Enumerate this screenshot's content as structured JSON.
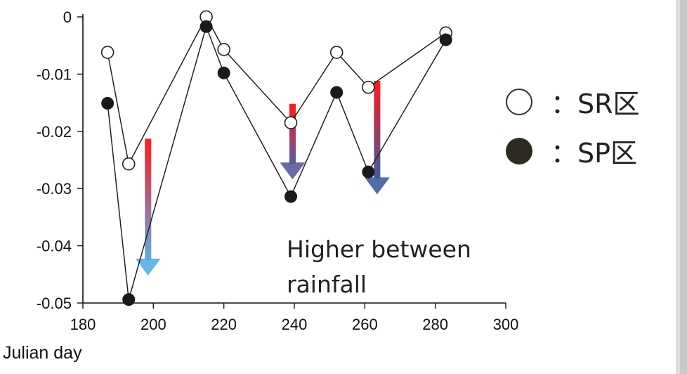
{
  "chart_data": {
    "type": "line",
    "title": "",
    "xlabel": "Julian day",
    "ylabel": "",
    "xlim": [
      180,
      300
    ],
    "ylim": [
      -0.05,
      0
    ],
    "x_ticks": [
      "180",
      "200",
      "220",
      "240",
      "260",
      "280",
      "300"
    ],
    "y_ticks": [
      "0",
      "-0.01",
      "-0.02",
      "-0.03",
      "-0.04",
      "-0.05"
    ],
    "series": [
      {
        "name": "SR区",
        "marker": "open-circle",
        "x": [
          187,
          193,
          215,
          220,
          239,
          252,
          261,
          283
        ],
        "y": [
          -0.0062,
          -0.0257,
          0.0,
          -0.0057,
          -0.0185,
          -0.0062,
          -0.0123,
          -0.0028
        ]
      },
      {
        "name": "SP区",
        "marker": "filled-circle",
        "x": [
          187,
          193,
          215,
          220,
          239,
          252,
          261,
          283
        ],
        "y": [
          -0.0151,
          -0.0494,
          -0.0017,
          -0.0098,
          -0.0314,
          -0.0132,
          -0.0271,
          -0.004
        ]
      }
    ],
    "arrows": [
      {
        "x": 198.5,
        "y_from": -0.0213,
        "y_to": -0.0452,
        "end_color": "#5aaee6"
      },
      {
        "x": 239.5,
        "y_from": -0.0152,
        "y_to": -0.0284,
        "end_color": "#5a5aa0"
      },
      {
        "x": 263.5,
        "y_from": -0.0112,
        "y_to": -0.031,
        "end_color": "#3f5da0"
      }
    ],
    "grid": false,
    "legend_position": "right"
  },
  "legend": {
    "sr_label": "：SR区",
    "sp_label": "：SP区"
  },
  "annotation": {
    "line1": "Higher between",
    "line2": "rainfall"
  },
  "colors": {
    "arrow_start": "#ff1a1a",
    "line": "#222222",
    "marker_fill": "#1a1a1a"
  }
}
